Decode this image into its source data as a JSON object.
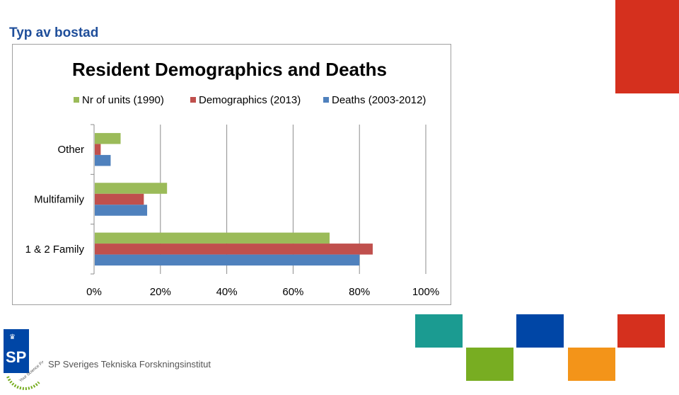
{
  "slide": {
    "title": "Typ av bostad",
    "org_name": "SP Sveriges Tekniska Forskningsinstitut",
    "logo_text": "SP",
    "logo_ring_text": "Your Science Partner"
  },
  "colors": {
    "title": "#1f4e9a",
    "red": "#d5301e",
    "teal": "#1b9b91",
    "blue": "#0046a6",
    "green": "#78ad22",
    "orange": "#f39419",
    "series_green": "#9bbb59",
    "series_red": "#c0504d",
    "series_blue": "#4f81bd"
  },
  "chart_data": {
    "type": "bar",
    "orientation": "horizontal",
    "title": "Resident Demographics and Deaths",
    "categories": [
      "Other",
      "Multifamily",
      "1 & 2 Family"
    ],
    "series": [
      {
        "name": "Nr of units (1990)",
        "color": "#9bbb59",
        "values": [
          8,
          22,
          71
        ]
      },
      {
        "name": "Demographics (2013)",
        "color": "#c0504d",
        "values": [
          2,
          15,
          84
        ]
      },
      {
        "name": "Deaths (2003-2012)",
        "color": "#4f81bd",
        "values": [
          5,
          16,
          80
        ]
      }
    ],
    "xlim": [
      0,
      100
    ],
    "xticks": [
      "0%",
      "20%",
      "40%",
      "60%",
      "80%",
      "100%"
    ],
    "xtick_values": [
      0,
      20,
      40,
      60,
      80,
      100
    ],
    "grid": true,
    "legend": "top"
  }
}
